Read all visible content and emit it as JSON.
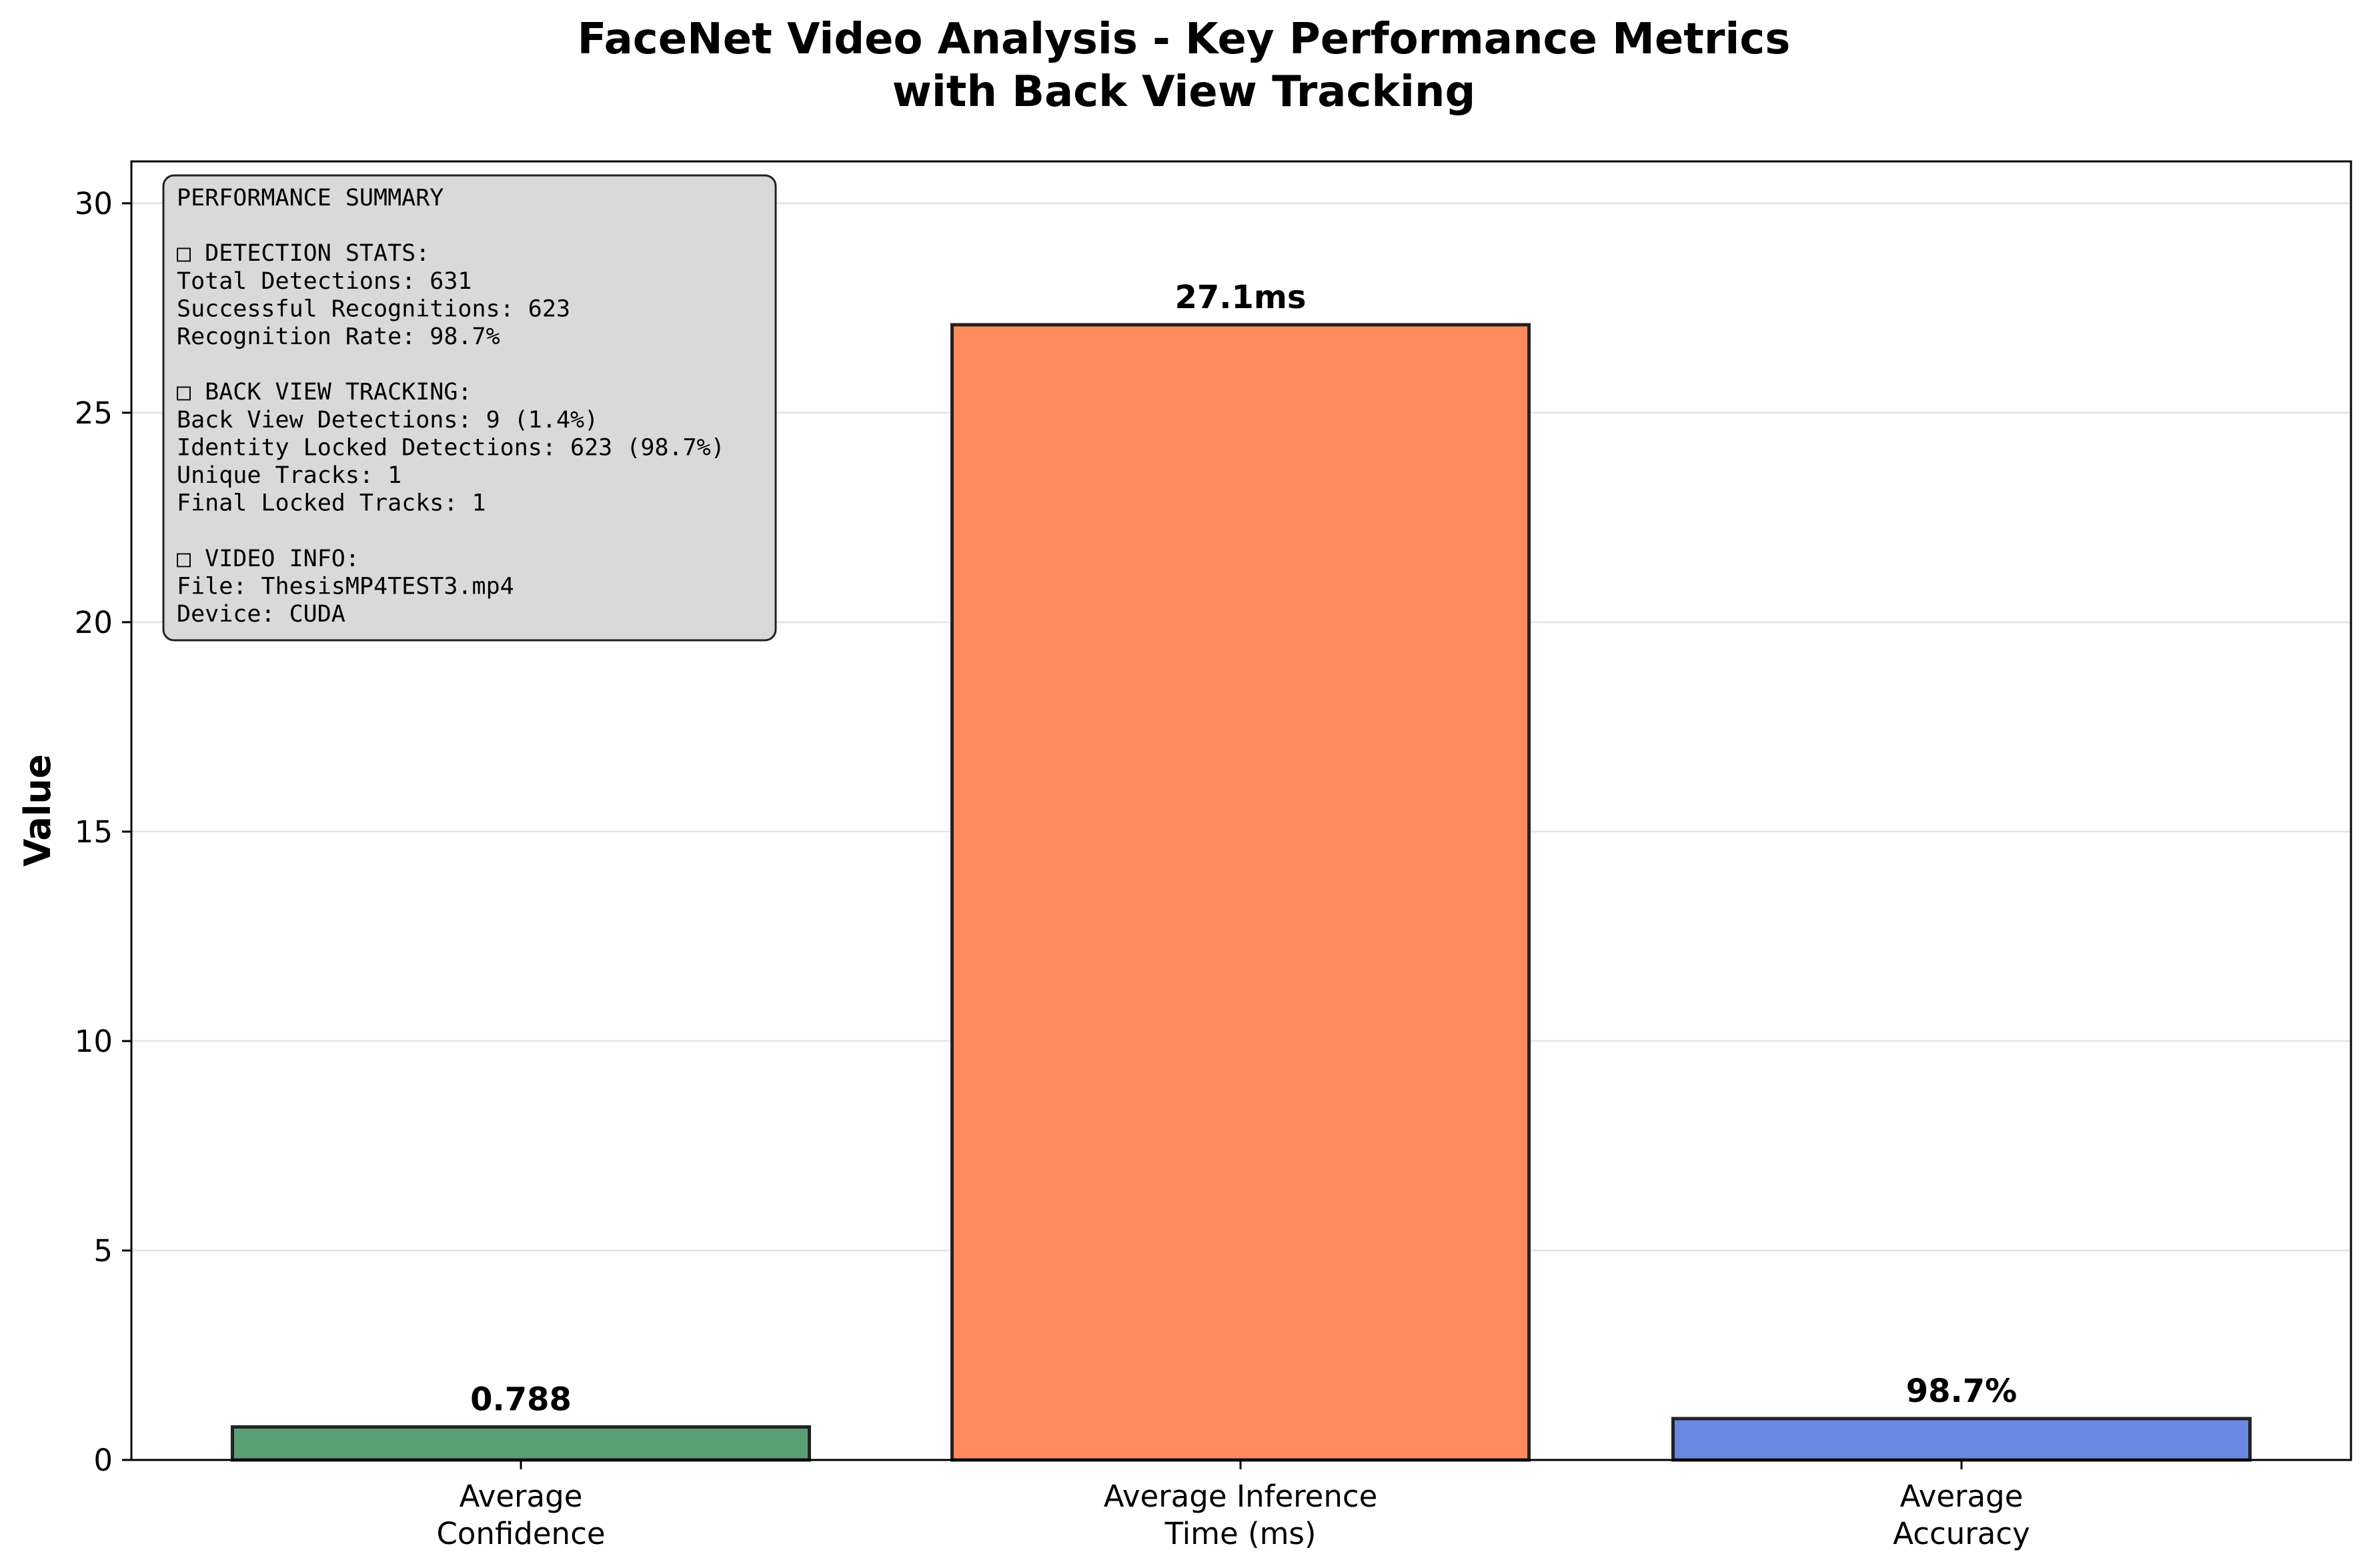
{
  "chart_data": {
    "type": "bar",
    "title_lines": [
      "FaceNet Video Analysis - Key Performance Metrics",
      "with Back View Tracking"
    ],
    "ylabel": "Value",
    "ylim": [
      0,
      31
    ],
    "yticks": [
      0,
      5,
      10,
      15,
      20,
      25,
      30
    ],
    "grid": "horizontal",
    "categories": [
      {
        "lines": [
          "Average",
          "Confidence"
        ]
      },
      {
        "lines": [
          "Average Inference",
          "Time (ms)"
        ]
      },
      {
        "lines": [
          "Average",
          "Accuracy"
        ]
      }
    ],
    "values": [
      0.788,
      27.1,
      0.987
    ],
    "value_labels": [
      "0.788",
      "27.1ms",
      "98.7%"
    ],
    "colors": [
      "#5a9e75",
      "#ff8a5c",
      "#6a87e3"
    ]
  },
  "summary_box": {
    "lines": [
      "PERFORMANCE SUMMARY",
      "",
      "□ DETECTION STATS:",
      "Total Detections: 631",
      "Successful Recognitions: 623",
      "Recognition Rate: 98.7%",
      "",
      "□ BACK VIEW TRACKING:",
      "Back View Detections: 9 (1.4%)",
      "Identity Locked Detections: 623 (98.7%)",
      "Unique Tracks: 1",
      "Final Locked Tracks: 1",
      "",
      "□ VIDEO INFO:",
      "File: ThesisMP4TEST3.mp4",
      "Device: CUDA"
    ]
  }
}
